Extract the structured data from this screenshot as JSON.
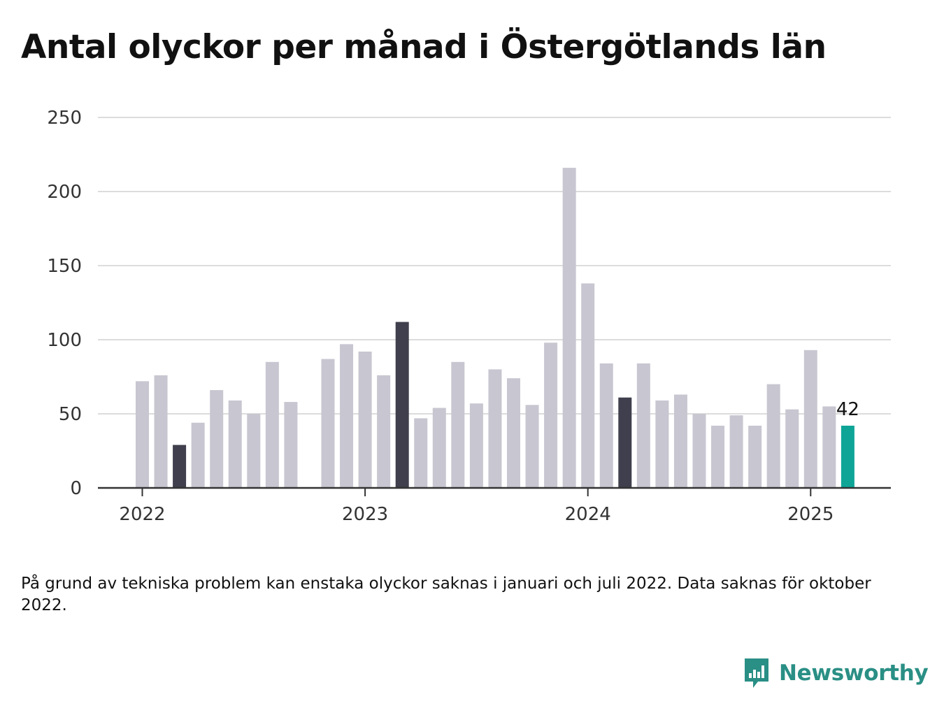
{
  "title": "Antal olyckor per månad i Östergötlands län",
  "note": "På grund av tekniska problem kan enstaka olyckor saknas i januari och juli 2022. Data saknas för oktober 2022.",
  "brand": {
    "name": "Newsworthy",
    "icon": "newsworthy-logo-icon"
  },
  "colors": {
    "bar": "#c8c6d0",
    "march": "#3f3f4d",
    "latest": "#0ea597",
    "grid": "#dcdcdc",
    "axis": "#333333",
    "brand": "#2a8f85"
  },
  "chart_data": {
    "type": "bar",
    "title": "Antal olyckor per månad i Östergötlands län",
    "xlabel": "",
    "ylabel": "",
    "ylim": [
      0,
      250
    ],
    "yticks": [
      "0",
      "50",
      "100",
      "150",
      "200",
      "250"
    ],
    "xticks": [
      {
        "label": "2022",
        "at": "2022-01"
      },
      {
        "label": "2023",
        "at": "2023-01"
      },
      {
        "label": "2024",
        "at": "2024-01"
      },
      {
        "label": "2025",
        "at": "2025-01"
      }
    ],
    "grid": true,
    "x": [
      "2022-01",
      "2022-02",
      "2022-03",
      "2022-04",
      "2022-05",
      "2022-06",
      "2022-07",
      "2022-08",
      "2022-09",
      "2022-10",
      "2022-11",
      "2022-12",
      "2023-01",
      "2023-02",
      "2023-03",
      "2023-04",
      "2023-05",
      "2023-06",
      "2023-07",
      "2023-08",
      "2023-09",
      "2023-10",
      "2023-11",
      "2023-12",
      "2024-01",
      "2024-02",
      "2024-03",
      "2024-04",
      "2024-05",
      "2024-06",
      "2024-07",
      "2024-08",
      "2024-09",
      "2024-10",
      "2024-11",
      "2024-12",
      "2025-01",
      "2025-02",
      "2025-03"
    ],
    "values": [
      72,
      76,
      29,
      44,
      66,
      59,
      50,
      85,
      58,
      null,
      87,
      97,
      92,
      76,
      112,
      47,
      54,
      85,
      57,
      80,
      74,
      56,
      98,
      216,
      138,
      84,
      61,
      84,
      59,
      63,
      50,
      42,
      49,
      42,
      70,
      53,
      93,
      55,
      42
    ],
    "highlight": {
      "march": [
        "2022-03",
        "2023-03",
        "2024-03"
      ],
      "latest": "2025-03"
    },
    "annotations": [
      {
        "x": "2025-03",
        "text": "42"
      }
    ]
  }
}
